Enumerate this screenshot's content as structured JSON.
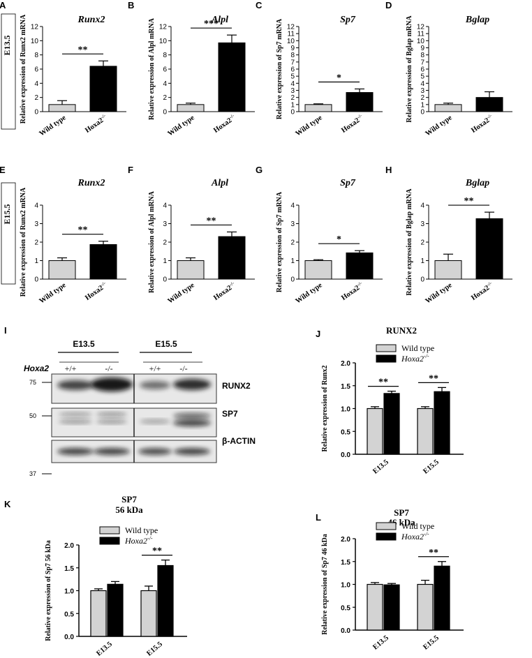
{
  "rows": [
    "E13.5",
    "E15.5"
  ],
  "small_panels": [
    {
      "letter": "A",
      "title": "Runx2",
      "ylabel": "Relative expression of Runx2 mRNA",
      "ymax": 12,
      "ticks": [
        0,
        2,
        4,
        6,
        8,
        10,
        12
      ],
      "categories": [
        "Wild type",
        "Hoxa2-/-"
      ],
      "values": [
        1.0,
        6.4
      ],
      "errors": [
        0.55,
        0.75
      ],
      "sig": "**"
    },
    {
      "letter": "B",
      "title": "Alpl",
      "ylabel": "Relative expression of Alpl mRNA",
      "ymax": 12,
      "ticks": [
        0,
        2,
        4,
        6,
        8,
        10,
        12
      ],
      "categories": [
        "Wild type",
        "Hoxa2-/-"
      ],
      "values": [
        1.0,
        9.7
      ],
      "errors": [
        0.2,
        1.1
      ],
      "sig": "***"
    },
    {
      "letter": "C",
      "title": "Sp7",
      "ylabel": "Relative expression of Sp7 mRNA",
      "ymax": 12,
      "ticks": [
        0,
        1,
        2,
        3,
        4,
        5,
        6,
        7,
        8,
        9,
        10,
        11,
        12
      ],
      "categories": [
        "Wild type",
        "Hoxa2-/-"
      ],
      "values": [
        1.0,
        2.7
      ],
      "errors": [
        0.1,
        0.5
      ],
      "sig": "*"
    },
    {
      "letter": "D",
      "title": "Bglap",
      "ylabel": "Relative expression of Bglap mRNA",
      "ymax": 12,
      "ticks": [
        0,
        1,
        2,
        3,
        4,
        5,
        6,
        7,
        8,
        9,
        10,
        11,
        12
      ],
      "categories": [
        "Wild type",
        "Hoxa2-/-"
      ],
      "values": [
        1.0,
        2.0
      ],
      "errors": [
        0.2,
        0.8
      ],
      "sig": ""
    },
    {
      "letter": "E",
      "title": "Runx2",
      "ylabel": "Relative expression of Runx2 mRNA",
      "ymax": 4,
      "ticks": [
        0,
        1,
        2,
        3,
        4
      ],
      "categories": [
        "Wild type",
        "Hoxa2-/-"
      ],
      "values": [
        1.0,
        1.87
      ],
      "errors": [
        0.15,
        0.18
      ],
      "sig": "**"
    },
    {
      "letter": "F",
      "title": "Alpl",
      "ylabel": "Relative expression of Alpl mRNA",
      "ymax": 4,
      "ticks": [
        0,
        1,
        2,
        3,
        4
      ],
      "categories": [
        "Wild type",
        "Hoxa2-/-"
      ],
      "values": [
        1.0,
        2.3
      ],
      "errors": [
        0.15,
        0.25
      ],
      "sig": "**"
    },
    {
      "letter": "G",
      "title": "Sp7",
      "ylabel": "Relative expression of Sp7 mRNA",
      "ymax": 4,
      "ticks": [
        0,
        1,
        2,
        3,
        4
      ],
      "categories": [
        "Wild type",
        "Hoxa2-/-"
      ],
      "values": [
        1.0,
        1.42
      ],
      "errors": [
        0.05,
        0.12
      ],
      "sig": "*"
    },
    {
      "letter": "H",
      "title": "Bglap",
      "ylabel": "Relative expression of Bglap mRNA",
      "ymax": 4,
      "ticks": [
        0,
        1,
        2,
        3,
        4
      ],
      "categories": [
        "Wild type",
        "Hoxa2-/-"
      ],
      "values": [
        1.0,
        3.27
      ],
      "errors": [
        0.35,
        0.35
      ],
      "sig": "**"
    }
  ],
  "blot": {
    "letter": "I",
    "stages": [
      "E13.5",
      "E15.5"
    ],
    "gene_label": "Hoxa2",
    "genotypes": [
      "+/+",
      "-/-",
      "+/+",
      "-/-"
    ],
    "proteins": [
      "RUNX2",
      "SP7",
      "β-ACTIN"
    ],
    "markers": [
      "75",
      "50",
      "37"
    ]
  },
  "chart_data": [
    {
      "type": "bar",
      "title": "RUNX2",
      "letter": "J",
      "xlabel": "",
      "ylabel": "Relative expression of Runx2",
      "ylim": [
        0,
        2.0
      ],
      "ticks": [
        "0.0",
        "0.5",
        "1.0",
        "1.5",
        "2.0"
      ],
      "categories": [
        "E13.5",
        "E15.5"
      ],
      "series": [
        {
          "name": "Wild type",
          "values": [
            1.0,
            1.0
          ],
          "errors": [
            0.04,
            0.04
          ]
        },
        {
          "name": "Hoxa2-/-",
          "values": [
            1.33,
            1.37
          ],
          "errors": [
            0.05,
            0.09
          ]
        }
      ],
      "sig": [
        "**",
        "**"
      ],
      "legend": "top-center"
    },
    {
      "type": "bar",
      "title": "SP7",
      "subtitle": "56 kDa",
      "letter": "K",
      "xlabel": "",
      "ylabel": "Relative expression of Sp7 56 kDa",
      "ylim": [
        0,
        2.0
      ],
      "ticks": [
        "0.0",
        "0.5",
        "1.0",
        "1.5",
        "2.0"
      ],
      "categories": [
        "E13.5",
        "E15.5"
      ],
      "series": [
        {
          "name": "Wild type",
          "values": [
            1.0,
            1.0
          ],
          "errors": [
            0.04,
            0.1
          ]
        },
        {
          "name": "Hoxa2-/-",
          "values": [
            1.14,
            1.55
          ],
          "errors": [
            0.06,
            0.12
          ]
        }
      ],
      "sig": [
        "",
        "**"
      ],
      "legend": "top-center"
    },
    {
      "type": "bar",
      "title": "SP7",
      "subtitle": "46 kDa",
      "letter": "L",
      "xlabel": "",
      "ylabel": "Relative expression of Sp7 46 kDa",
      "ylim": [
        0,
        2.0
      ],
      "ticks": [
        "0.0",
        "0.5",
        "1.0",
        "1.5",
        "2.0"
      ],
      "categories": [
        "E13.5",
        "E15.5"
      ],
      "series": [
        {
          "name": "Wild type",
          "values": [
            1.0,
            1.0
          ],
          "errors": [
            0.04,
            0.09
          ]
        },
        {
          "name": "Hoxa2-/-",
          "values": [
            0.99,
            1.4
          ],
          "errors": [
            0.03,
            0.1
          ]
        }
      ],
      "sig": [
        "",
        "**"
      ],
      "legend": "top-center"
    }
  ],
  "colors": {
    "wild_type": "#d3d3d3",
    "hoxa2": "#000000",
    "axis": "#000000"
  }
}
